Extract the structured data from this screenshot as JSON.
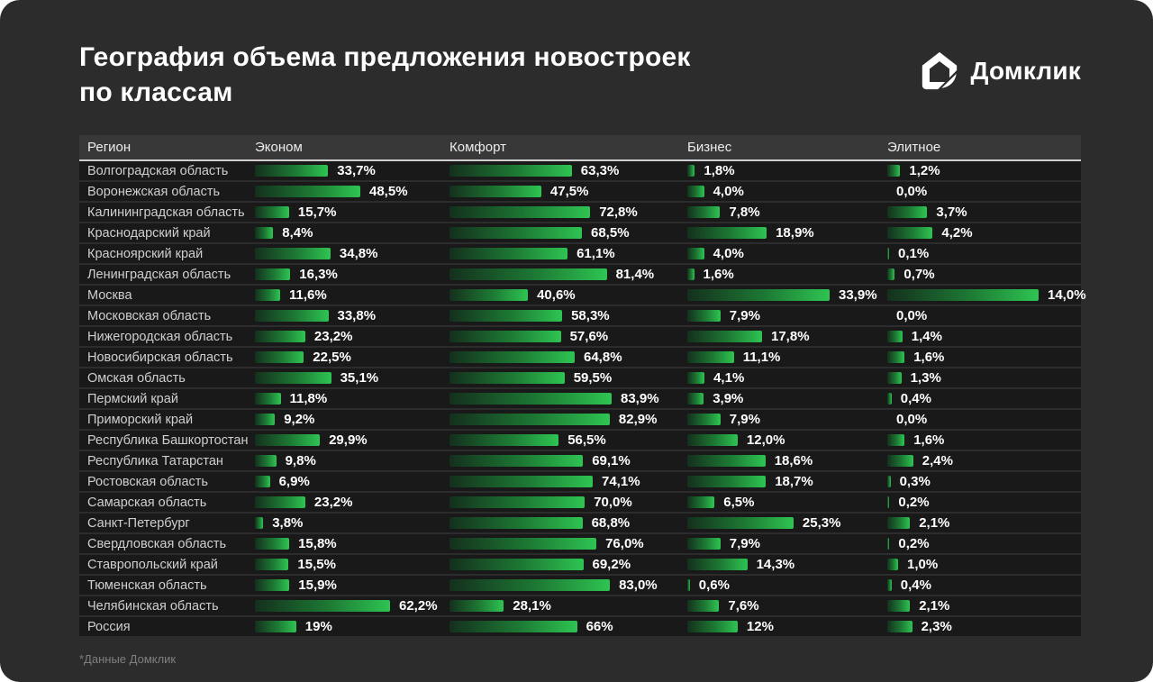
{
  "page": {
    "title_line1": "География объема предложения новостроек",
    "title_line2": "по классам",
    "logo_text": "Домклик",
    "footnote": "*Данные Домклик"
  },
  "table": {
    "columns": [
      "Регион",
      "Эконом",
      "Комфорт",
      "Бизнес",
      "Элитное"
    ]
  },
  "colors": {
    "background": "#2C2C2C",
    "row_background": "#191919",
    "bar_gradient_start": "#14301D",
    "bar_gradient_end": "#2EC452",
    "text_primary": "#FFFFFF",
    "text_secondary": "#CFCFCF"
  },
  "chart_data": {
    "type": "bar",
    "title": "География объема предложения новостроек по классам",
    "value_unit": "%",
    "layout": {
      "orientation": "horizontal",
      "bars_scaled_to_each_column_max": true,
      "grid": false,
      "legend_position": "column-headers"
    },
    "categories": [
      "Волгоградская область",
      "Воронежская область",
      "Калининградская область",
      "Краснодарский край",
      "Красноярский край",
      "Ленинградская область",
      "Москва",
      "Московская область",
      "Нижегородская область",
      "Новосибирская область",
      "Омская область",
      "Пермский край",
      "Приморский край",
      "Республика Башкортостан",
      "Республика Татарстан",
      "Ростовская область",
      "Самарская область",
      "Санкт-Петербург",
      "Свердловская область",
      "Ставропольский край",
      "Тюменская область",
      "Челябинская область",
      "Россия"
    ],
    "series": [
      {
        "name": "Эконом",
        "values": [
          33.7,
          48.5,
          15.7,
          8.4,
          34.8,
          16.3,
          11.6,
          33.8,
          23.2,
          22.5,
          35.1,
          11.8,
          9.2,
          29.9,
          9.8,
          6.9,
          23.2,
          3.8,
          15.8,
          15.5,
          15.9,
          62.2,
          19
        ],
        "labels": [
          "33,7%",
          "48,5%",
          "15,7%",
          "8,4%",
          "34,8%",
          "16,3%",
          "11,6%",
          "33,8%",
          "23,2%",
          "22,5%",
          "35,1%",
          "11,8%",
          "9,2%",
          "29,9%",
          "9,8%",
          "6,9%",
          "23,2%",
          "3,8%",
          "15,8%",
          "15,5%",
          "15,9%",
          "62,2%",
          "19%"
        ]
      },
      {
        "name": "Комфорт",
        "values": [
          63.3,
          47.5,
          72.8,
          68.5,
          61.1,
          81.4,
          40.6,
          58.3,
          57.6,
          64.8,
          59.5,
          83.9,
          82.9,
          56.5,
          69.1,
          74.1,
          70.0,
          68.8,
          76.0,
          69.2,
          83.0,
          28.1,
          66
        ],
        "labels": [
          "63,3%",
          "47,5%",
          "72,8%",
          "68,5%",
          "61,1%",
          "81,4%",
          "40,6%",
          "58,3%",
          "57,6%",
          "64,8%",
          "59,5%",
          "83,9%",
          "82,9%",
          "56,5%",
          "69,1%",
          "74,1%",
          "70,0%",
          "68,8%",
          "76,0%",
          "69,2%",
          "83,0%",
          "28,1%",
          "66%"
        ]
      },
      {
        "name": "Бизнес",
        "values": [
          1.8,
          4.0,
          7.8,
          18.9,
          4.0,
          1.6,
          33.9,
          7.9,
          17.8,
          11.1,
          4.1,
          3.9,
          7.9,
          12.0,
          18.6,
          18.7,
          6.5,
          25.3,
          7.9,
          14.3,
          0.6,
          7.6,
          12
        ],
        "labels": [
          "1,8%",
          "4,0%",
          "7,8%",
          "18,9%",
          "4,0%",
          "1,6%",
          "33,9%",
          "7,9%",
          "17,8%",
          "11,1%",
          "4,1%",
          "3,9%",
          "7,9%",
          "12,0%",
          "18,6%",
          "18,7%",
          "6,5%",
          "25,3%",
          "7,9%",
          "14,3%",
          "0,6%",
          "7,6%",
          "12%"
        ]
      },
      {
        "name": "Элитное",
        "values": [
          1.2,
          0.0,
          3.7,
          4.2,
          0.1,
          0.7,
          14.0,
          0.0,
          1.4,
          1.6,
          1.3,
          0.4,
          0.0,
          1.6,
          2.4,
          0.3,
          0.2,
          2.1,
          0.2,
          1.0,
          0.4,
          2.1,
          2.3
        ],
        "labels": [
          "1,2%",
          "0,0%",
          "3,7%",
          "4,2%",
          "0,1%",
          "0,7%",
          "14,0%",
          "0,0%",
          "1,4%",
          "1,6%",
          "1,3%",
          "0,4%",
          "0,0%",
          "1,6%",
          "2,4%",
          "0,3%",
          "0,2%",
          "2,1%",
          "0,2%",
          "1,0%",
          "0,4%",
          "2,1%",
          "2,3%"
        ]
      }
    ]
  }
}
